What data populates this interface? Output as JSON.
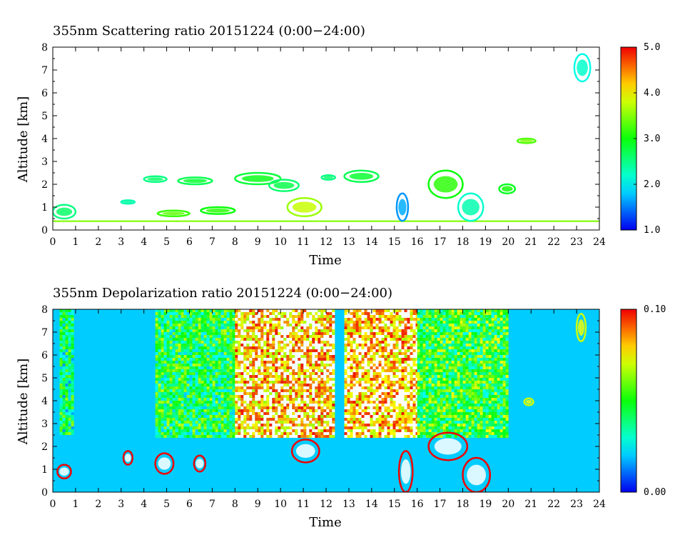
{
  "chart_data": [
    {
      "type": "heatmap",
      "title": "355nm Scattering ratio  20151224 (0:00−24:00)",
      "xlabel": "Time",
      "ylabel": "Altitude [km]",
      "xlim": [
        0,
        24
      ],
      "ylim": [
        0,
        8
      ],
      "x_ticks": [
        "0",
        "1",
        "2",
        "3",
        "4",
        "5",
        "6",
        "7",
        "8",
        "9",
        "10",
        "11",
        "12",
        "13",
        "14",
        "15",
        "16",
        "17",
        "18",
        "19",
        "20",
        "21",
        "22",
        "23",
        "24"
      ],
      "y_ticks": [
        "0",
        "1",
        "2",
        "3",
        "4",
        "5",
        "6",
        "7",
        "8"
      ],
      "colorbar": {
        "min": 1.0,
        "max": 5.0,
        "labels": [
          "5.0",
          "4.0",
          "3.0",
          "2.0",
          "1.0"
        ],
        "colormap": "rainbow"
      },
      "background_value": "below 1.0 (white)",
      "features": [
        {
          "t0": 0.0,
          "t1": 24.0,
          "z0": 0.35,
          "z1": 0.42,
          "value": 3.5,
          "kind": "surface layer"
        },
        {
          "t0": 0.0,
          "t1": 1.0,
          "z0": 0.5,
          "z1": 1.1,
          "value": 2.5
        },
        {
          "t0": 3.0,
          "t1": 3.6,
          "z0": 1.15,
          "z1": 1.3,
          "value": 2.3
        },
        {
          "t0": 4.0,
          "t1": 5.0,
          "z0": 2.1,
          "z1": 2.35,
          "value": 2.5
        },
        {
          "t0": 4.6,
          "t1": 6.0,
          "z0": 0.6,
          "z1": 0.85,
          "value": 3.2
        },
        {
          "t0": 5.5,
          "t1": 7.0,
          "z0": 2.0,
          "z1": 2.3,
          "value": 2.7
        },
        {
          "t0": 6.5,
          "t1": 8.0,
          "z0": 0.7,
          "z1": 1.0,
          "value": 3.0
        },
        {
          "t0": 8.0,
          "t1": 10.0,
          "z0": 2.0,
          "z1": 2.5,
          "value": 2.8
        },
        {
          "t0": 9.5,
          "t1": 10.8,
          "z0": 1.7,
          "z1": 2.2,
          "value": 2.6
        },
        {
          "t0": 10.3,
          "t1": 11.8,
          "z0": 0.6,
          "z1": 1.4,
          "value": 3.6
        },
        {
          "t0": 11.8,
          "t1": 12.4,
          "z0": 2.2,
          "z1": 2.4,
          "value": 2.5
        },
        {
          "t0": 12.8,
          "t1": 14.3,
          "z0": 2.1,
          "z1": 2.6,
          "value": 2.7
        },
        {
          "t0": 15.1,
          "t1": 15.6,
          "z0": 0.4,
          "z1": 1.6,
          "value": 1.6
        },
        {
          "t0": 16.5,
          "t1": 18.0,
          "z0": 1.4,
          "z1": 2.6,
          "value": 3.0
        },
        {
          "t0": 17.8,
          "t1": 18.9,
          "z0": 0.4,
          "z1": 1.6,
          "value": 2.2
        },
        {
          "t0": 19.6,
          "t1": 20.3,
          "z0": 1.6,
          "z1": 2.0,
          "value": 2.9
        },
        {
          "t0": 20.4,
          "t1": 21.2,
          "z0": 3.8,
          "z1": 4.0,
          "value": 3.3
        },
        {
          "t0": 22.9,
          "t1": 23.6,
          "z0": 6.5,
          "z1": 7.7,
          "value": 2.1
        }
      ]
    },
    {
      "type": "heatmap",
      "title": "355nm Depolarization ratio  20151224 (0:00−24:00)",
      "xlabel": "Time",
      "ylabel": "Altitude [km]",
      "xlim": [
        0,
        24
      ],
      "ylim": [
        0,
        8
      ],
      "x_ticks": [
        "0",
        "1",
        "2",
        "3",
        "4",
        "5",
        "6",
        "7",
        "8",
        "9",
        "10",
        "11",
        "12",
        "13",
        "14",
        "15",
        "16",
        "17",
        "18",
        "19",
        "20",
        "21",
        "22",
        "23",
        "24"
      ],
      "y_ticks": [
        "0",
        "1",
        "2",
        "3",
        "4",
        "5",
        "6",
        "7",
        "8"
      ],
      "colorbar": {
        "min": 0.0,
        "max": 0.1,
        "labels": [
          "0.10",
          "0.00"
        ],
        "colormap": "rainbow"
      },
      "background_value": 0.02,
      "noisy_regions": [
        {
          "t0": 0.3,
          "t1": 0.9,
          "z0": 2.5,
          "z1": 8.0,
          "value": 0.04
        },
        {
          "t0": 4.5,
          "t1": 8.0,
          "z0": 2.4,
          "z1": 8.0,
          "value": 0.045
        },
        {
          "t0": 8.0,
          "t1": 12.3,
          "z0": 2.4,
          "z1": 8.0,
          "value": 0.09
        },
        {
          "t0": 12.8,
          "t1": 16.0,
          "z0": 2.4,
          "z1": 8.0,
          "value": 0.09
        },
        {
          "t0": 16.0,
          "t1": 20.0,
          "z0": 2.4,
          "z1": 8.0,
          "value": 0.05
        }
      ],
      "features": [
        {
          "t0": 0.2,
          "t1": 0.8,
          "z0": 0.6,
          "z1": 1.2,
          "value": 0.1
        },
        {
          "t0": 3.1,
          "t1": 3.5,
          "z0": 1.2,
          "z1": 1.8,
          "value": 0.1
        },
        {
          "t0": 4.5,
          "t1": 5.3,
          "z0": 0.8,
          "z1": 1.7,
          "value": 0.1
        },
        {
          "t0": 6.2,
          "t1": 6.7,
          "z0": 0.9,
          "z1": 1.6,
          "value": 0.1
        },
        {
          "t0": 10.5,
          "t1": 11.7,
          "z0": 1.3,
          "z1": 2.3,
          "value": 0.1
        },
        {
          "t0": 15.2,
          "t1": 15.8,
          "z0": 0.0,
          "z1": 1.8,
          "value": 0.1
        },
        {
          "t0": 16.5,
          "t1": 18.2,
          "z0": 1.4,
          "z1": 2.6,
          "value": 0.1
        },
        {
          "t0": 18.0,
          "t1": 19.2,
          "z0": 0.0,
          "z1": 1.5,
          "value": 0.1
        },
        {
          "t0": 20.7,
          "t1": 21.1,
          "z0": 3.8,
          "z1": 4.1,
          "value": 0.07
        },
        {
          "t0": 23.0,
          "t1": 23.4,
          "z0": 6.6,
          "z1": 7.8,
          "value": 0.07
        }
      ]
    }
  ]
}
